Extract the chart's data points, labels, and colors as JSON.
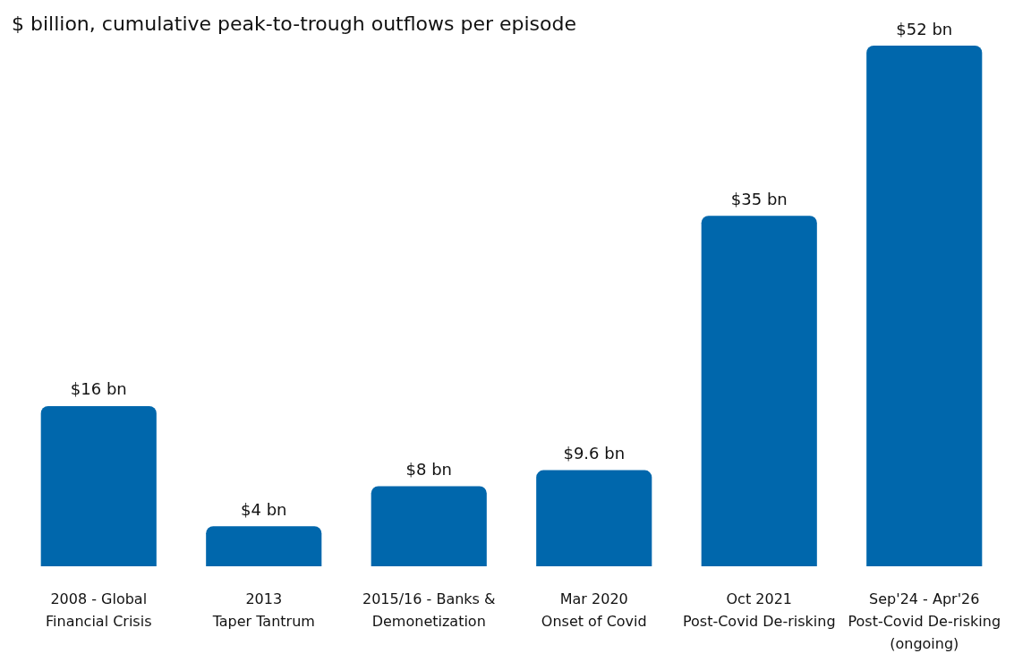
{
  "chart_data": {
    "type": "bar",
    "subtitle": "$ billion, cumulative peak-to-trough outflows per episode",
    "categories": [
      "2008 - Global\nFinancial Crisis",
      "2013\nTaper Tantrum",
      "2015/16 - Banks &\nDemonetization",
      "Mar 2020\nOnset of Covid",
      "Oct 2021\nPost-Covid De-risking",
      "Sep'24 - Apr'26\nPost-Covid De-risking\n(ongoing)"
    ],
    "values": [
      16,
      4,
      8,
      9.6,
      35,
      52
    ],
    "value_labels": [
      "$16 bn",
      "$4 bn",
      "$8 bn",
      "$9.6 bn",
      "$35 bn",
      "$52 bn"
    ],
    "color": "#0067ac"
  }
}
